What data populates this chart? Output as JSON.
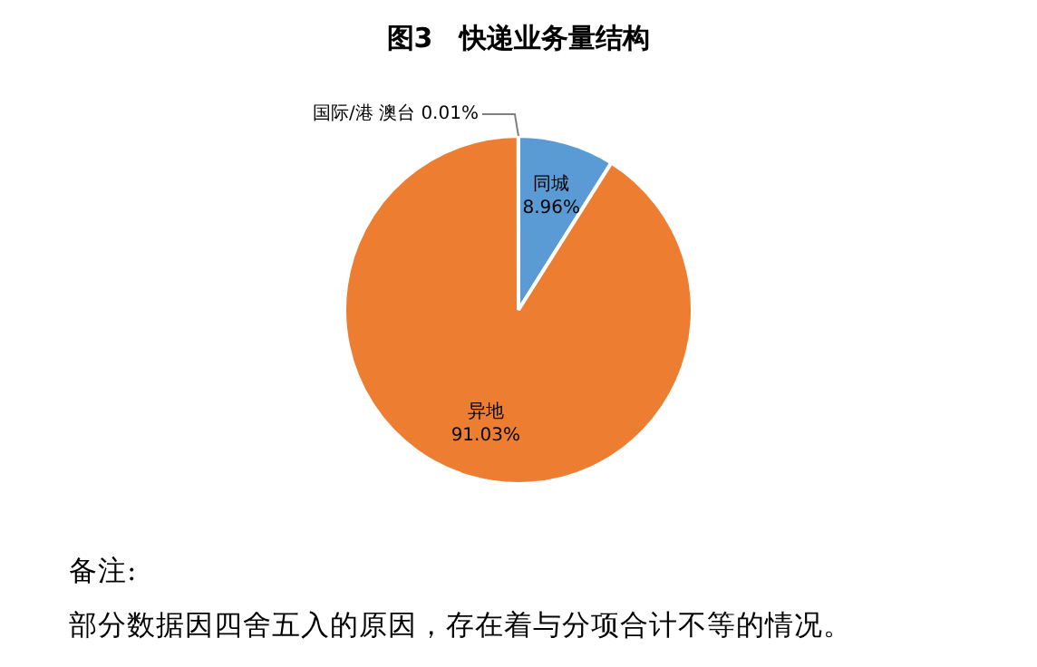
{
  "chart_data": {
    "type": "pie",
    "title": "图3　快递业务量结构",
    "categories": [
      "同城",
      "异地",
      "国际/港澳台"
    ],
    "values": [
      8.96,
      91.03,
      0.01
    ],
    "value_labels": [
      "8.96%",
      "91.03%",
      "0.01%"
    ],
    "colors": [
      "#5b9bd5",
      "#ed7d31",
      "#a5a5a5"
    ],
    "legend": false,
    "annotations": [
      "备注:",
      "部分数据因四舍五入的原因，存在着与分项合计不等的情况。"
    ]
  }
}
